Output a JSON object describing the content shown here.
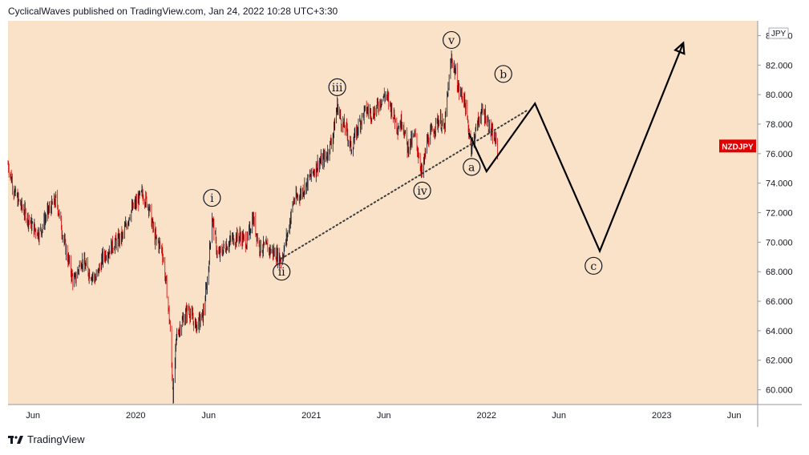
{
  "header": {
    "publisher_line": "CyclicalWaves published on TradingView.com, Jan 24, 2022 10:28 UTC+3:30"
  },
  "footer": {
    "brand": "TradingView"
  },
  "colors": {
    "background": "#fae2c8",
    "up_candle": "#131722",
    "down_candle": "#d50000",
    "projection": "#000000",
    "symbol_badge": "#e00000"
  },
  "chart_data": {
    "type": "candlestick",
    "symbol": "NZDJPY",
    "currency": "JPY",
    "x_tick_labels": [
      "Jun",
      "2020",
      "Jun",
      "2021",
      "Jun",
      "2022",
      "Jun",
      "2023",
      "Jun"
    ],
    "y_tick_labels": [
      "60.000",
      "62.000",
      "64.000",
      "66.000",
      "68.000",
      "70.000",
      "72.000",
      "74.000",
      "76.000",
      "78.000",
      "80.000",
      "82.000",
      "84.000"
    ],
    "ylim": [
      59,
      85
    ],
    "xlim": [
      "2019-04-10",
      "2023-07-20"
    ],
    "grid": false,
    "price_path": [
      [
        "2019-04-10",
        75.3
      ],
      [
        "2019-04-25",
        73.2
      ],
      [
        "2019-05-10",
        72.3
      ],
      [
        "2019-06-01",
        71.0
      ],
      [
        "2019-06-15",
        70.6
      ],
      [
        "2019-07-01",
        72.0
      ],
      [
        "2019-07-20",
        72.9
      ],
      [
        "2019-08-05",
        70.0
      ],
      [
        "2019-08-25",
        67.2
      ],
      [
        "2019-09-10",
        68.8
      ],
      [
        "2019-09-25",
        68.0
      ],
      [
        "2019-10-10",
        67.5
      ],
      [
        "2019-10-25",
        69.0
      ],
      [
        "2019-11-15",
        69.8
      ],
      [
        "2019-12-05",
        70.4
      ],
      [
        "2019-12-20",
        72.0
      ],
      [
        "2020-01-05",
        72.8
      ],
      [
        "2020-01-15",
        73.3
      ],
      [
        "2020-01-28",
        72.5
      ],
      [
        "2020-02-10",
        70.3
      ],
      [
        "2020-02-25",
        69.5
      ],
      [
        "2020-03-05",
        67.0
      ],
      [
        "2020-03-12",
        64.5
      ],
      [
        "2020-03-19",
        59.6
      ],
      [
        "2020-03-26",
        63.6
      ],
      [
        "2020-04-05",
        64.5
      ],
      [
        "2020-04-20",
        65.5
      ],
      [
        "2020-05-05",
        64.3
      ],
      [
        "2020-05-20",
        65.0
      ],
      [
        "2020-05-30",
        67.5
      ],
      [
        "2020-06-08",
        71.8
      ],
      [
        "2020-06-20",
        69.0
      ],
      [
        "2020-07-05",
        69.7
      ],
      [
        "2020-07-20",
        70.2
      ],
      [
        "2020-08-05",
        70.4
      ],
      [
        "2020-08-20",
        70.0
      ],
      [
        "2020-09-01",
        71.7
      ],
      [
        "2020-09-15",
        69.7
      ],
      [
        "2020-10-01",
        69.6
      ],
      [
        "2020-10-15",
        69.3
      ],
      [
        "2020-10-31",
        68.8
      ],
      [
        "2020-11-12",
        70.5
      ],
      [
        "2020-11-25",
        72.8
      ],
      [
        "2020-12-10",
        73.3
      ],
      [
        "2020-12-31",
        74.5
      ],
      [
        "2021-01-15",
        75.3
      ],
      [
        "2021-02-01",
        75.8
      ],
      [
        "2021-02-15",
        77.2
      ],
      [
        "2021-02-24",
        79.3
      ],
      [
        "2021-03-05",
        78.1
      ],
      [
        "2021-03-15",
        77.6
      ],
      [
        "2021-03-25",
        76.3
      ],
      [
        "2021-04-10",
        78.0
      ],
      [
        "2021-04-25",
        79.0
      ],
      [
        "2021-05-10",
        78.7
      ],
      [
        "2021-05-25",
        79.6
      ],
      [
        "2021-06-05",
        80.0
      ],
      [
        "2021-06-15",
        79.2
      ],
      [
        "2021-06-30",
        77.8
      ],
      [
        "2021-07-10",
        78.3
      ],
      [
        "2021-07-20",
        76.4
      ],
      [
        "2021-08-05",
        77.2
      ],
      [
        "2021-08-20",
        74.6
      ],
      [
        "2021-08-30",
        76.8
      ],
      [
        "2021-09-10",
        77.5
      ],
      [
        "2021-09-25",
        78.4
      ],
      [
        "2021-10-05",
        77.6
      ],
      [
        "2021-10-12",
        80.0
      ],
      [
        "2021-10-20",
        82.5
      ],
      [
        "2021-10-28",
        81.5
      ],
      [
        "2021-11-05",
        80.2
      ],
      [
        "2021-11-15",
        79.8
      ],
      [
        "2021-11-22",
        78.2
      ],
      [
        "2021-12-01",
        76.4
      ],
      [
        "2021-12-10",
        77.6
      ],
      [
        "2021-12-20",
        78.8
      ],
      [
        "2021-12-30",
        78.6
      ],
      [
        "2022-01-10",
        77.5
      ],
      [
        "2022-01-20",
        76.8
      ],
      [
        "2022-01-24",
        76.3
      ]
    ],
    "projection_path": [
      [
        "2021-11-25",
        77.4
      ],
      [
        "2022-01-01",
        74.8
      ],
      [
        "2022-04-12",
        79.4
      ],
      [
        "2022-08-25",
        69.4
      ],
      [
        "2023-02-15",
        83.5
      ]
    ],
    "trendline": [
      [
        "2020-10-31",
        68.9
      ],
      [
        "2022-03-25",
        78.9
      ]
    ],
    "wave_labels": [
      {
        "text": "i",
        "date": "2020-06-08",
        "value": 73.0,
        "anchor": "above"
      },
      {
        "text": "ii",
        "date": "2020-10-31",
        "value": 68.0,
        "anchor": "below"
      },
      {
        "text": "iii",
        "date": "2021-02-24",
        "value": 80.5,
        "anchor": "above"
      },
      {
        "text": "iv",
        "date": "2021-08-20",
        "value": 73.5,
        "anchor": "below"
      },
      {
        "text": "v",
        "date": "2021-10-20",
        "value": 83.7,
        "anchor": "above"
      },
      {
        "text": "a",
        "date": "2021-12-01",
        "value": 75.1,
        "anchor": "below"
      },
      {
        "text": "b",
        "date": "2022-02-05",
        "value": 81.4,
        "anchor": "right"
      },
      {
        "text": "c",
        "date": "2022-08-12",
        "value": 68.4,
        "anchor": "below"
      }
    ],
    "last_price_label": "NZDJPY",
    "last_price": 76.3
  }
}
